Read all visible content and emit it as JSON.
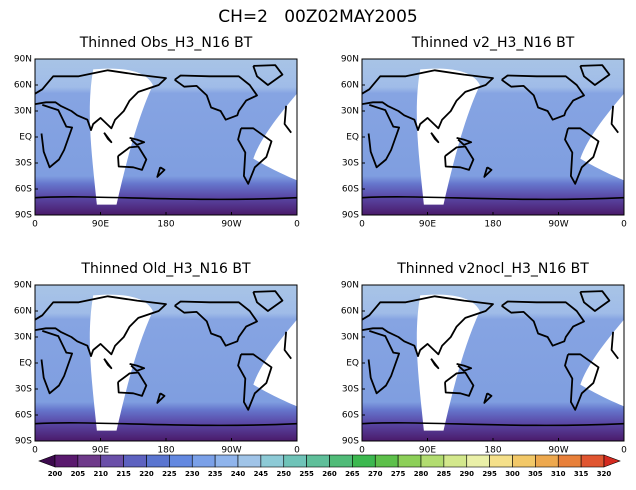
{
  "title": "CH=2   00Z02MAY2005",
  "panels": [
    {
      "title": "Thinned Obs_H3_N16 BT"
    },
    {
      "title": "Thinned v2_H3_N16 BT"
    },
    {
      "title": "Thinned Old_H3_N16 BT"
    },
    {
      "title": "Thinned v2nocl_H3_N16 BT"
    }
  ],
  "lat_labels": [
    "90N",
    "60N",
    "30N",
    "EQ",
    "30S",
    "60S",
    "90S"
  ],
  "lon_labels": [
    "0",
    "90E",
    "180",
    "90W",
    "0"
  ],
  "colorbar": {
    "levels": [
      200,
      205,
      210,
      215,
      220,
      225,
      230,
      235,
      240,
      245,
      250,
      255,
      260,
      265,
      270,
      275,
      280,
      285,
      290,
      295,
      300,
      305,
      310,
      315,
      320
    ],
    "colors": [
      "#3d0a4e",
      "#5a1a6e",
      "#6e3a8a",
      "#6a4fa8",
      "#5d62c0",
      "#5a75d0",
      "#6388e0",
      "#7aa0e8",
      "#8fb4ec",
      "#a0c4e8",
      "#8dcad6",
      "#6fc3b8",
      "#5fbf9a",
      "#50bb78",
      "#3cb84f",
      "#5dc04a",
      "#8ccf58",
      "#b2dc70",
      "#d3e88c",
      "#eaf0a8",
      "#f5e08a",
      "#f2c868",
      "#eda84e",
      "#e8803a",
      "#e05530",
      "#d42a20"
    ]
  }
}
